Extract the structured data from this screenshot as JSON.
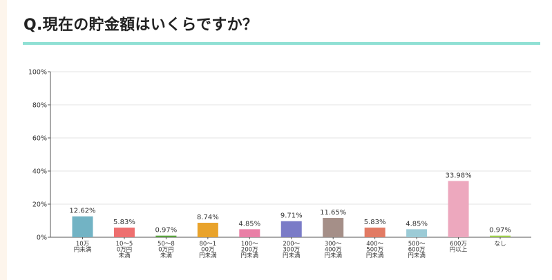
{
  "title": "Q.現在の貯金額はいくらですか？",
  "colors": {
    "accent_rule": "#8fe0d4",
    "grid": "#e3e3e3",
    "axis": "#555555"
  },
  "chart_data": {
    "type": "bar",
    "ylim": [
      0,
      100
    ],
    "yticks": [
      0,
      20,
      40,
      60,
      80,
      100
    ],
    "ytick_labels": [
      "0%",
      "20%",
      "40%",
      "60%",
      "80%",
      "100%"
    ],
    "grid": true,
    "categories": [
      [
        "10万",
        "円未満"
      ],
      [
        "10～5",
        "0万円",
        "未満"
      ],
      [
        "50～8",
        "0万円",
        "未満"
      ],
      [
        "80～1",
        "00万",
        "円未満"
      ],
      [
        "100～",
        "200万",
        "円未満"
      ],
      [
        "200～",
        "300万",
        "円未満"
      ],
      [
        "300～",
        "400万",
        "円未満"
      ],
      [
        "400～",
        "500万",
        "円未満"
      ],
      [
        "500～",
        "600万",
        "円未満"
      ],
      [
        "600万",
        "円以上"
      ],
      [
        "なし"
      ]
    ],
    "values": [
      12.62,
      5.83,
      0.97,
      8.74,
      4.85,
      9.71,
      11.65,
      5.83,
      4.85,
      33.98,
      0.97
    ],
    "value_labels": [
      "12.62%",
      "5.83%",
      "0.97%",
      "8.74%",
      "4.85%",
      "9.71%",
      "11.65%",
      "5.83%",
      "4.85%",
      "33.98%",
      "0.97%"
    ],
    "bar_colors": [
      "#72b3c4",
      "#ee6f6f",
      "#5aa33f",
      "#e9a32b",
      "#e97fa6",
      "#7a7bc7",
      "#a58f88",
      "#e27a63",
      "#9ccbd6",
      "#eda8be",
      "#9fcf4f"
    ]
  }
}
